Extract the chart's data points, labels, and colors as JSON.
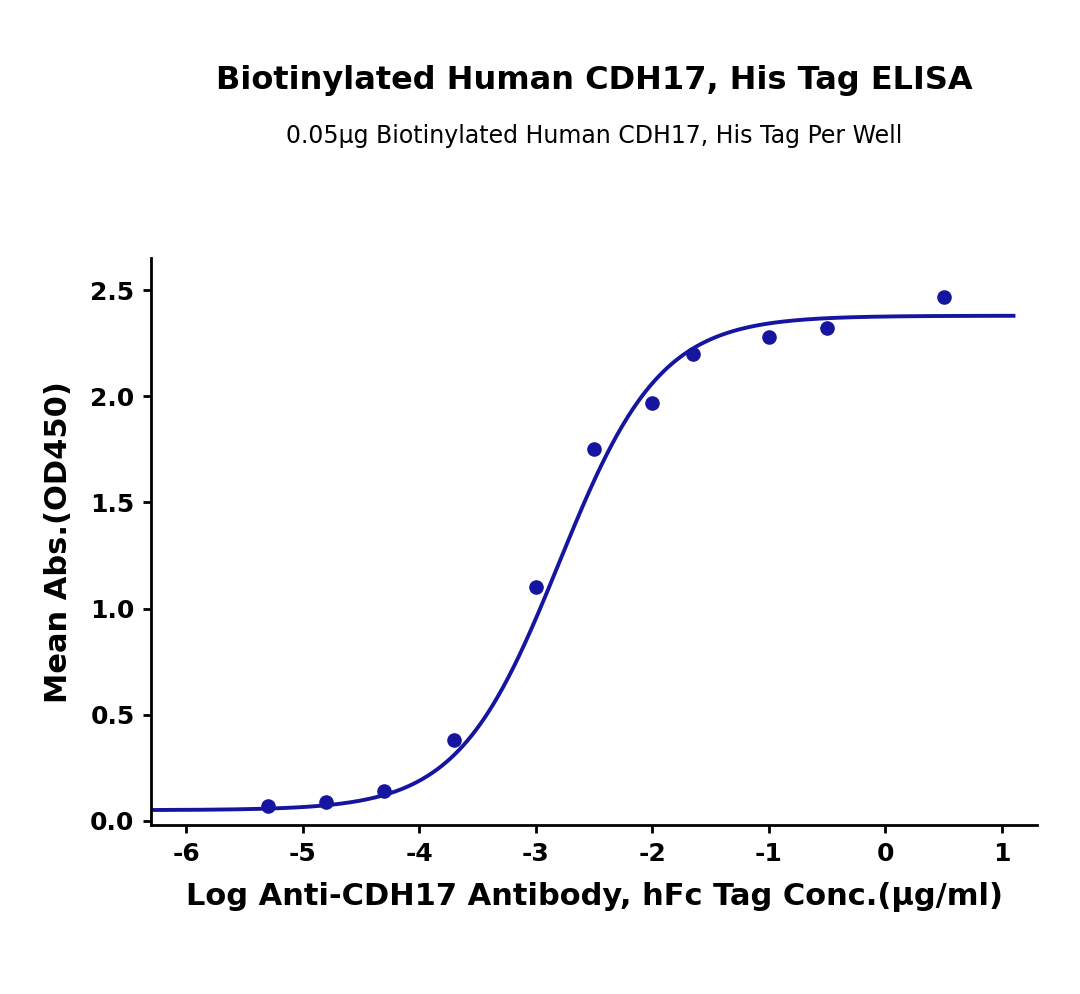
{
  "title": "Biotinylated Human CDH17, His Tag ELISA",
  "subtitle": "0.05μg Biotinylated Human CDH17, His Tag Per Well",
  "xlabel": "Log Anti-CDH17 Antibody, hFc Tag Conc.(μg/ml)",
  "ylabel": "Mean Abs.(OD450)",
  "curve_color": "#1515a0",
  "dot_color": "#1515a0",
  "xlim": [
    -6.3,
    1.3
  ],
  "ylim": [
    -0.02,
    2.65
  ],
  "xticks": [
    -6,
    -5,
    -4,
    -3,
    -2,
    -1,
    0,
    1
  ],
  "yticks": [
    0.0,
    0.5,
    1.0,
    1.5,
    2.0,
    2.5
  ],
  "data_x": [
    -5.3,
    -4.8,
    -4.3,
    -3.7,
    -3.0,
    -2.5,
    -2.0,
    -1.65,
    -1.0,
    -0.5,
    0.5
  ],
  "data_y": [
    0.07,
    0.09,
    0.14,
    0.38,
    1.1,
    1.75,
    1.97,
    2.2,
    2.28,
    2.32,
    2.47
  ],
  "title_fontsize": 23,
  "subtitle_fontsize": 17,
  "axis_label_fontsize": 22,
  "tick_fontsize": 18,
  "background_color": "#ffffff",
  "line_width": 2.8,
  "dot_size": 90
}
